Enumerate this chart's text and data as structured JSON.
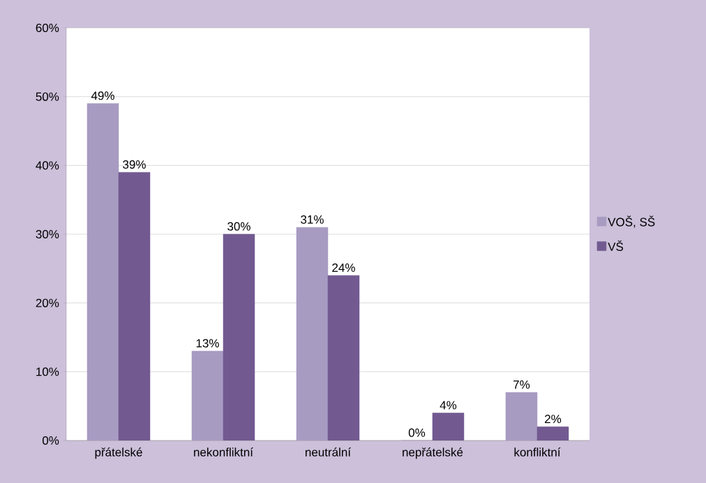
{
  "chart_data": {
    "type": "bar",
    "categories": [
      "přátelské",
      "nekonfliktní",
      "neutrální",
      "nepřátelské",
      "konfliktní"
    ],
    "series": [
      {
        "name": "VOŠ, SŠ",
        "color": "#a89bc2",
        "values": [
          49,
          13,
          31,
          0,
          7
        ],
        "value_labels": [
          "49%",
          "13%",
          "31%",
          "0%",
          "7%"
        ]
      },
      {
        "name": "VŠ",
        "color": "#725a91",
        "values": [
          39,
          30,
          24,
          4,
          2
        ],
        "value_labels": [
          "39%",
          "30%",
          "24%",
          "4%",
          "2%"
        ]
      }
    ],
    "ylim": [
      0,
      60
    ],
    "yticks": [
      {
        "value": 0,
        "label": "0%"
      },
      {
        "value": 10,
        "label": "10%"
      },
      {
        "value": 20,
        "label": "20%"
      },
      {
        "value": 30,
        "label": "30%"
      },
      {
        "value": 40,
        "label": "40%"
      },
      {
        "value": 50,
        "label": "50%"
      },
      {
        "value": 60,
        "label": "60%"
      }
    ],
    "grid": "y",
    "legend": "right"
  }
}
